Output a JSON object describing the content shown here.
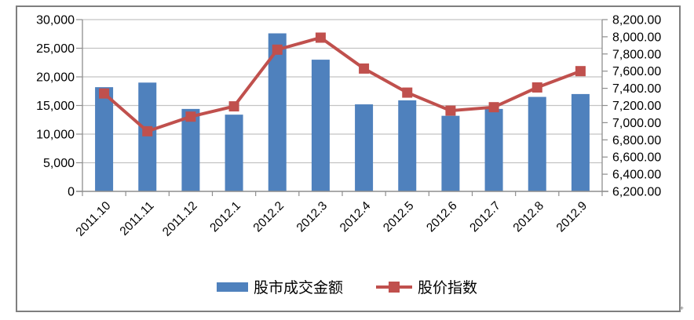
{
  "figure": {
    "background": "#FFFFFF",
    "border_color": "#7F7F7F",
    "corner_mark": "+"
  },
  "chart_data": {
    "type": "combo-bar-line",
    "categories": [
      "2011.10",
      "2011.11",
      "2011.12",
      "2012.1",
      "2012.2",
      "2012.3",
      "2012.4",
      "2012.5",
      "2012.6",
      "2012.7",
      "2012.8",
      "2012.9"
    ],
    "series": [
      {
        "name": "股市成交金额",
        "type": "bar",
        "axis": "left",
        "color": "#4F81BD",
        "values": [
          18200,
          19000,
          14400,
          13400,
          27600,
          23000,
          15200,
          15900,
          13200,
          14400,
          16500,
          17000
        ]
      },
      {
        "name": "股价指数",
        "type": "line",
        "axis": "right",
        "color": "#C0504D",
        "marker": "square",
        "values": [
          7340,
          6900,
          7070,
          7190,
          7850,
          7990,
          7630,
          7350,
          7140,
          7180,
          7410,
          7600
        ]
      }
    ],
    "left_axis": {
      "min": 0,
      "max": 30000,
      "step": 5000,
      "tick_labels": [
        "0",
        "5,000",
        "10,000",
        "15,000",
        "20,000",
        "25,000",
        "30,000"
      ]
    },
    "right_axis": {
      "min": 6200,
      "max": 8200,
      "step": 200,
      "tick_labels": [
        "6,200.00",
        "6,400.00",
        "6,600.00",
        "6,800.00",
        "7,000.00",
        "7,200.00",
        "7,400.00",
        "7,600.00",
        "7,800.00",
        "8,000.00",
        "8,200.00"
      ]
    },
    "grid": "horizontal, every 5000 of left axis",
    "legend_position": "bottom",
    "colors": {
      "gridline": "#C3C3C3",
      "axis": "#8E8E8E",
      "text": "#000000"
    },
    "x_tick_label_rotation": -45
  },
  "legend": {
    "items": [
      {
        "label": "股市成交金额",
        "swatch": "bar"
      },
      {
        "label": "股价指数",
        "swatch": "line-with-square-marker"
      }
    ]
  }
}
